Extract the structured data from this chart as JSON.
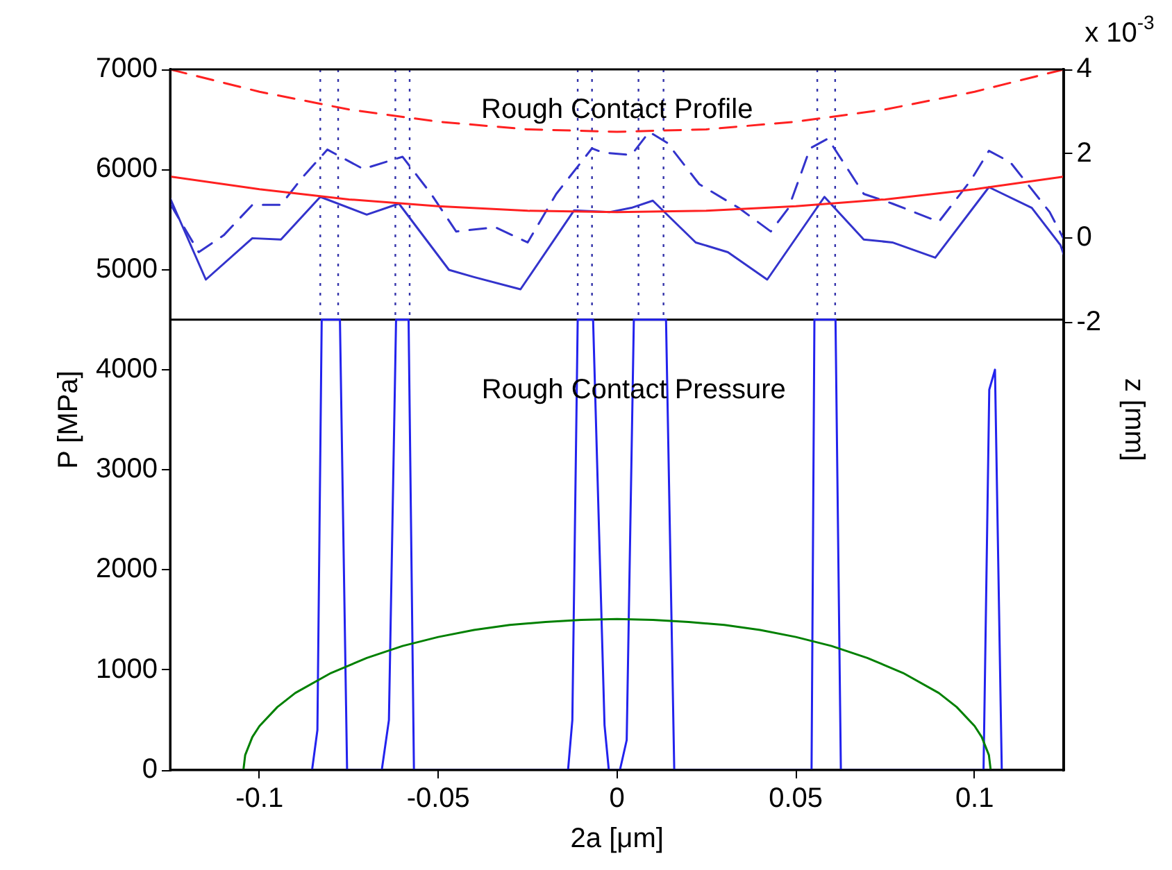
{
  "chart_data": {
    "type": "line",
    "xlabel": "2a [μm]",
    "ylabel": "P [MPa]",
    "y2label": "z [mm]",
    "xlim": [
      -0.125,
      0.125
    ],
    "xticks": [
      -0.1,
      -0.05,
      0,
      0.05,
      0.1
    ],
    "ylim": [
      0,
      7000
    ],
    "yticks": [
      0,
      1000,
      2000,
      3000,
      4000,
      5000,
      6000,
      7000
    ],
    "y2lim": [
      -12.6,
      4
    ],
    "y2ticks": [
      -2,
      0,
      2,
      4
    ],
    "grid": false,
    "legend": false,
    "marker": "none",
    "annotations": [
      "Rough Contact Profile",
      "Rough Contact Pressure",
      "x 10$^{-3}$"
    ],
    "ref_lines": [
      {
        "axis": "y",
        "value": 4500,
        "color": "#000000",
        "line_style": "solid"
      },
      {
        "axis": "x",
        "value": -0.083,
        "color": "#3333aa",
        "line_style": "dotted"
      },
      {
        "axis": "x",
        "value": -0.078,
        "color": "#3333aa",
        "line_style": "dotted"
      },
      {
        "axis": "x",
        "value": -0.062,
        "color": "#3333aa",
        "line_style": "dotted"
      },
      {
        "axis": "x",
        "value": -0.058,
        "color": "#3333aa",
        "line_style": "dotted"
      },
      {
        "axis": "x",
        "value": -0.011,
        "color": "#3333aa",
        "line_style": "dotted"
      },
      {
        "axis": "x",
        "value": -0.007,
        "color": "#3333aa",
        "line_style": "dotted"
      },
      {
        "axis": "x",
        "value": 0.006,
        "color": "#3333aa",
        "line_style": "dotted"
      },
      {
        "axis": "x",
        "value": 0.013,
        "color": "#3333aa",
        "line_style": "dotted"
      },
      {
        "axis": "x",
        "value": 0.056,
        "color": "#3333aa",
        "line_style": "dotted"
      },
      {
        "axis": "x",
        "value": 0.061,
        "color": "#3333aa",
        "line_style": "dotted"
      }
    ],
    "series": [
      {
        "axis": "y2",
        "color": "#ff2020",
        "line_style": "dashed",
        "x": [
          -0.125,
          -0.1,
          -0.075,
          -0.05,
          -0.025,
          0,
          0.025,
          0.05,
          0.075,
          0.1,
          0.125
        ],
        "values": [
          4,
          3.47,
          3.05,
          2.76,
          2.58,
          2.52,
          2.58,
          2.76,
          3.05,
          3.47,
          4
        ]
      },
      {
        "axis": "y2",
        "color": "#ff2020",
        "line_style": "solid",
        "x": [
          -0.125,
          -0.1,
          -0.075,
          -0.05,
          -0.025,
          0,
          0.025,
          0.05,
          0.075,
          0.1,
          0.125
        ],
        "values": [
          1.46,
          1.16,
          0.92,
          0.76,
          0.65,
          0.62,
          0.65,
          0.76,
          0.92,
          1.16,
          1.46
        ]
      },
      {
        "axis": "y2",
        "color": "#3333cc",
        "line_style": "dashed",
        "x": [
          -0.125,
          -0.117,
          -0.11,
          -0.102,
          -0.094,
          -0.088,
          -0.081,
          -0.071,
          -0.06,
          -0.052,
          -0.045,
          -0.034,
          -0.025,
          -0.017,
          -0.007,
          -0.004,
          0.004,
          0.009,
          0.014,
          0.023,
          0.034,
          0.043,
          0.048,
          0.054,
          0.059,
          0.069,
          0.077,
          0.09,
          0.099,
          0.104,
          0.11,
          0.121,
          0.125
        ],
        "values": [
          0.82,
          -0.33,
          0.07,
          0.79,
          0.79,
          1.44,
          2.1,
          1.64,
          1.93,
          1.05,
          0.16,
          0.26,
          -0.1,
          1.05,
          2.13,
          2.03,
          1.97,
          2.52,
          2.26,
          1.28,
          0.72,
          0.16,
          0.72,
          2.13,
          2.36,
          1.05,
          0.82,
          0.39,
          1.38,
          2.07,
          1.8,
          0.62,
          -0.03
        ]
      },
      {
        "axis": "y2",
        "color": "#3333cc",
        "line_style": "solid",
        "x": [
          -0.125,
          -0.115,
          -0.102,
          -0.094,
          -0.083,
          -0.07,
          -0.061,
          -0.047,
          -0.04,
          -0.027,
          -0.012,
          -0.002,
          0.004,
          0.01,
          0.022,
          0.031,
          0.042,
          0.058,
          0.069,
          0.077,
          0.089,
          0.104,
          0.116,
          0.124,
          0.125
        ],
        "values": [
          0.95,
          -0.98,
          0,
          -0.03,
          0.98,
          0.56,
          0.82,
          -0.75,
          -0.92,
          -1.21,
          0.66,
          0.62,
          0.72,
          0.89,
          -0.1,
          -0.33,
          -0.98,
          0.98,
          -0.03,
          -0.1,
          -0.46,
          1.21,
          0.72,
          -0.16,
          -0.4
        ]
      },
      {
        "axis": "y",
        "color": "#008000",
        "line_style": "solid",
        "x": [
          -0.1045,
          -0.104,
          -0.102,
          -0.1,
          -0.095,
          -0.09,
          -0.08,
          -0.07,
          -0.06,
          -0.05,
          -0.04,
          -0.03,
          -0.02,
          -0.01,
          0,
          0.01,
          0.02,
          0.03,
          0.04,
          0.05,
          0.06,
          0.07,
          0.08,
          0.09,
          0.095,
          0.1,
          0.102,
          0.104,
          0.1045
        ],
        "values": [
          0,
          150,
          330,
          440,
          630,
          770,
          970,
          1120,
          1240,
          1330,
          1400,
          1450,
          1480,
          1500,
          1510,
          1500,
          1480,
          1450,
          1400,
          1330,
          1240,
          1120,
          970,
          770,
          630,
          440,
          330,
          150,
          0
        ]
      },
      {
        "axis": "y",
        "color": "#2222ee",
        "line_style": "solid",
        "x": [
          -0.0853,
          -0.0838,
          -0.0826,
          -0.0775,
          -0.0755,
          -0.0658,
          -0.0638,
          -0.0618,
          -0.0583,
          -0.0568,
          -0.0137,
          -0.0125,
          -0.011,
          -0.0067,
          -0.0035,
          -0.0023,
          0.0008,
          0.0027,
          0.0047,
          0.0137,
          0.016,
          0.0544,
          0.0552,
          0.0611,
          0.0626,
          0.1025,
          0.1041,
          0.1057,
          0.1076
        ],
        "values": [
          0,
          400,
          4500,
          4500,
          0,
          0,
          500,
          4500,
          4500,
          0,
          0,
          500,
          4500,
          4500,
          450,
          0,
          0,
          300,
          4500,
          4500,
          0,
          0,
          4500,
          4500,
          0,
          0,
          3800,
          4000,
          0
        ]
      }
    ]
  }
}
